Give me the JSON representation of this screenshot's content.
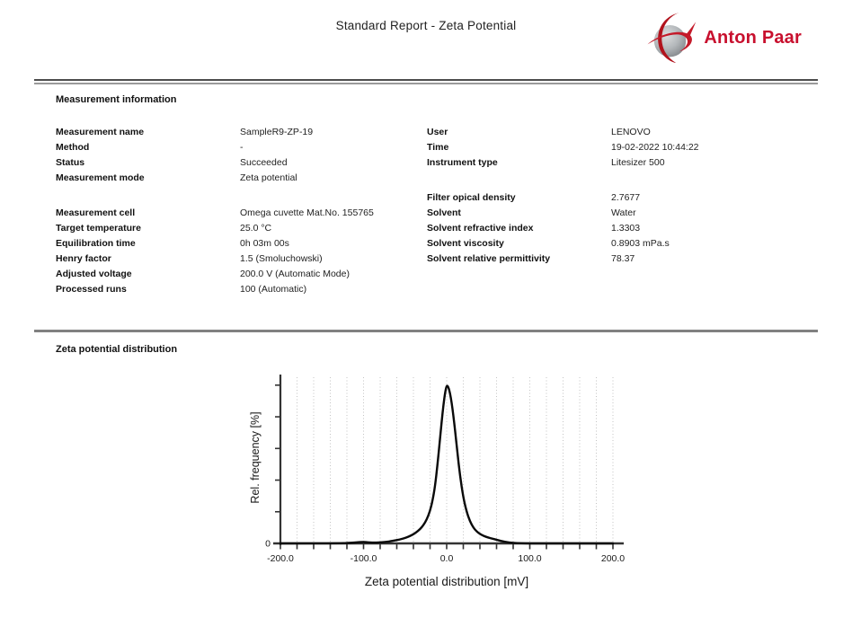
{
  "page": {
    "title": "Standard Report - Zeta Potential"
  },
  "logo": {
    "text": "Anton Paar",
    "brand_color": "#c8102e",
    "sphere_color_light": "#d9dbdd",
    "sphere_color_dark": "#8f9397"
  },
  "sections": {
    "measurement_info": {
      "title": "Measurement information"
    },
    "zeta_distribution": {
      "title": "Zeta potential distribution"
    }
  },
  "info_rows": [
    {
      "l1": "Measurement name",
      "v1": "SampleR9-ZP-19",
      "l2": "User",
      "v2": "LENOVO"
    },
    {
      "l1": "Method",
      "v1": "-",
      "l2": "Time",
      "v2": "19-02-2022 10:44:22"
    },
    {
      "l1": "Status",
      "v1": "Succeeded",
      "l2": "Instrument type",
      "v2": "Litesizer 500"
    },
    {
      "l1": "Measurement mode",
      "v1": "Zeta potential",
      "l2": "",
      "v2": ""
    },
    {
      "l1": "",
      "v1": "",
      "l2": "Filter opical density",
      "v2": "2.7677"
    },
    {
      "l1": "Measurement cell",
      "v1": "Omega cuvette Mat.No. 155765",
      "l2": "Solvent",
      "v2": "Water"
    },
    {
      "l1": "Target temperature",
      "v1": "25.0 °C",
      "l2": "Solvent refractive index",
      "v2": "1.3303"
    },
    {
      "l1": "Equilibration time",
      "v1": "0h 03m 00s",
      "l2": "Solvent viscosity",
      "v2": "0.8903 mPa.s"
    },
    {
      "l1": "Henry factor",
      "v1": "1.5 (Smoluchowski)",
      "l2": "Solvent relative permittivity",
      "v2": "78.37"
    },
    {
      "l1": "Adjusted voltage",
      "v1": "200.0 V (Automatic Mode)",
      "l2": "",
      "v2": ""
    },
    {
      "l1": "Processed runs",
      "v1": "100 (Automatic)",
      "l2": "",
      "v2": ""
    }
  ],
  "chart_data": {
    "type": "line",
    "title": "",
    "xlabel": "Zeta potential distribution [mV]",
    "ylabel": "Rel. frequency [%]",
    "xlim": [
      -200,
      200
    ],
    "ylim": [
      0,
      105
    ],
    "x_tick_labels": [
      "-200.0",
      "-100.0",
      "0.0",
      "100.0",
      "200.0"
    ],
    "x_tick_values": [
      -200,
      -100,
      0,
      100,
      200
    ],
    "x_minor_tick_step": 20,
    "y_tick_labels": [
      "0"
    ],
    "y_minor_tick_values": [
      20,
      40,
      60,
      80,
      100
    ],
    "grid": "vertical-dotted",
    "line_color": "#0a0a0a",
    "series": [
      {
        "name": "Zeta potential distribution",
        "x": [
          -200,
          -160,
          -130,
          -115,
          -108,
          -102,
          -97,
          -92,
          -87,
          -82,
          -77,
          -72,
          -67,
          -62,
          -57,
          -52,
          -47,
          -42,
          -37,
          -32,
          -28,
          -24,
          -20,
          -17,
          -14,
          -11,
          -8,
          -6,
          -4,
          -2,
          0,
          2,
          4,
          6,
          8,
          10,
          13,
          16,
          20,
          24,
          28,
          32,
          36,
          40,
          45,
          50,
          55,
          60,
          65,
          70,
          75,
          80,
          90,
          100,
          150,
          200
        ],
        "y": [
          0,
          0,
          0.1,
          0.3,
          0.7,
          0.9,
          0.8,
          0.6,
          0.5,
          0.6,
          0.8,
          1.0,
          1.4,
          1.9,
          2.4,
          3.1,
          4.0,
          5.2,
          6.8,
          9.0,
          11.5,
          15,
          20.5,
          27,
          36,
          50,
          66,
          77,
          87,
          95,
          100,
          99,
          95,
          89,
          81,
          72,
          57,
          43,
          29,
          20,
          14,
          10,
          7.6,
          6.0,
          4.6,
          3.7,
          3.0,
          2.3,
          1.6,
          1.0,
          0.6,
          0.3,
          0.1,
          0,
          0,
          0
        ]
      }
    ]
  }
}
